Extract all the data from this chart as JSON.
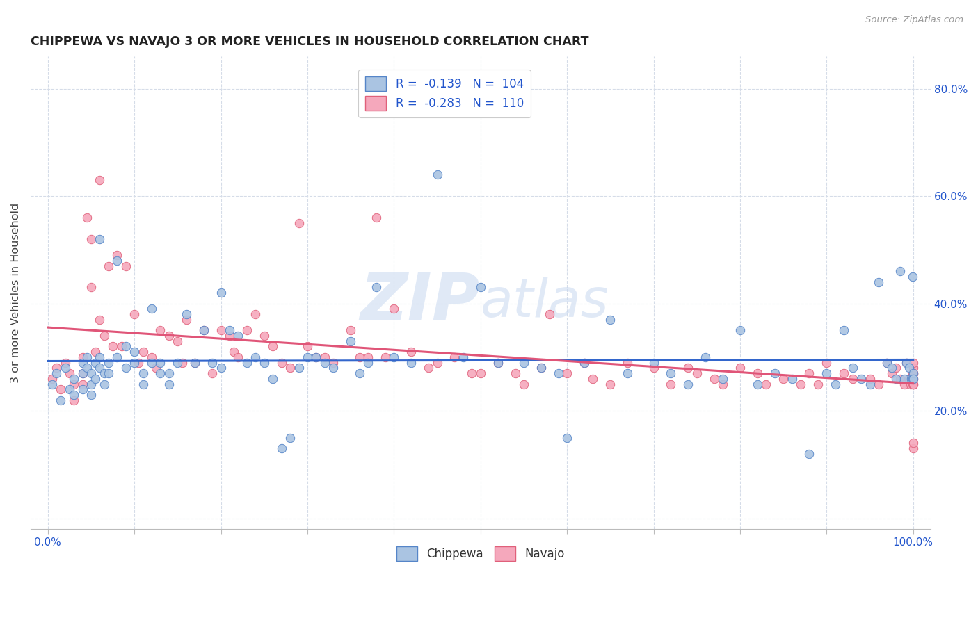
{
  "title": "CHIPPEWA VS NAVAJO 3 OR MORE VEHICLES IN HOUSEHOLD CORRELATION CHART",
  "source": "Source: ZipAtlas.com",
  "ylabel": "3 or more Vehicles in Household",
  "xlim": [
    -0.02,
    1.02
  ],
  "ylim": [
    -0.02,
    0.86
  ],
  "xticks": [
    0.0,
    0.1,
    0.2,
    0.3,
    0.4,
    0.5,
    0.6,
    0.7,
    0.8,
    0.9,
    1.0
  ],
  "yticks": [
    0.0,
    0.2,
    0.4,
    0.6,
    0.8
  ],
  "chippewa_color": "#aac4e2",
  "navajo_color": "#f5a8bc",
  "chippewa_edge_color": "#5585c8",
  "navajo_edge_color": "#e0607a",
  "chippewa_line_color": "#3366cc",
  "navajo_line_color": "#e05578",
  "legend_text_1": "R =  -0.139   N =  104",
  "legend_text_2": "R =  -0.283   N =  110",
  "legend_color": "#2255cc",
  "watermark": "ZIPatlas",
  "background_color": "#ffffff",
  "grid_color": "#d5dce8",
  "bottom_legend": [
    "Chippewa",
    "Navajo"
  ],
  "chippewa_x": [
    0.005,
    0.01,
    0.015,
    0.02,
    0.025,
    0.03,
    0.03,
    0.04,
    0.04,
    0.04,
    0.045,
    0.045,
    0.05,
    0.05,
    0.05,
    0.055,
    0.055,
    0.06,
    0.06,
    0.06,
    0.065,
    0.065,
    0.07,
    0.07,
    0.08,
    0.08,
    0.09,
    0.09,
    0.1,
    0.1,
    0.11,
    0.11,
    0.12,
    0.12,
    0.13,
    0.13,
    0.14,
    0.14,
    0.15,
    0.16,
    0.17,
    0.18,
    0.19,
    0.2,
    0.2,
    0.21,
    0.22,
    0.23,
    0.24,
    0.25,
    0.26,
    0.27,
    0.28,
    0.29,
    0.3,
    0.31,
    0.32,
    0.33,
    0.35,
    0.36,
    0.37,
    0.38,
    0.4,
    0.42,
    0.45,
    0.48,
    0.5,
    0.52,
    0.55,
    0.57,
    0.59,
    0.6,
    0.62,
    0.65,
    0.67,
    0.7,
    0.72,
    0.74,
    0.76,
    0.78,
    0.8,
    0.82,
    0.84,
    0.86,
    0.88,
    0.9,
    0.91,
    0.92,
    0.93,
    0.94,
    0.95,
    0.96,
    0.97,
    0.975,
    0.98,
    0.985,
    0.99,
    0.992,
    0.995,
    0.998,
    0.999,
    0.999,
    1.0,
    1.0
  ],
  "chippewa_y": [
    0.25,
    0.27,
    0.22,
    0.28,
    0.24,
    0.26,
    0.23,
    0.29,
    0.27,
    0.24,
    0.28,
    0.3,
    0.27,
    0.25,
    0.23,
    0.29,
    0.26,
    0.52,
    0.3,
    0.28,
    0.27,
    0.25,
    0.29,
    0.27,
    0.48,
    0.3,
    0.32,
    0.28,
    0.31,
    0.29,
    0.27,
    0.25,
    0.39,
    0.29,
    0.27,
    0.29,
    0.27,
    0.25,
    0.29,
    0.38,
    0.29,
    0.35,
    0.29,
    0.42,
    0.28,
    0.35,
    0.34,
    0.29,
    0.3,
    0.29,
    0.26,
    0.13,
    0.15,
    0.28,
    0.3,
    0.3,
    0.29,
    0.28,
    0.33,
    0.27,
    0.29,
    0.43,
    0.3,
    0.29,
    0.64,
    0.3,
    0.43,
    0.29,
    0.29,
    0.28,
    0.27,
    0.15,
    0.29,
    0.37,
    0.27,
    0.29,
    0.27,
    0.25,
    0.3,
    0.26,
    0.35,
    0.25,
    0.27,
    0.26,
    0.12,
    0.27,
    0.25,
    0.35,
    0.28,
    0.26,
    0.25,
    0.44,
    0.29,
    0.28,
    0.26,
    0.46,
    0.26,
    0.29,
    0.28,
    0.26,
    0.45,
    0.26,
    0.27,
    0.26
  ],
  "navajo_x": [
    0.005,
    0.01,
    0.015,
    0.02,
    0.025,
    0.03,
    0.03,
    0.04,
    0.04,
    0.04,
    0.045,
    0.05,
    0.05,
    0.055,
    0.06,
    0.06,
    0.065,
    0.07,
    0.075,
    0.08,
    0.085,
    0.09,
    0.1,
    0.105,
    0.11,
    0.12,
    0.125,
    0.13,
    0.14,
    0.15,
    0.155,
    0.16,
    0.17,
    0.18,
    0.19,
    0.2,
    0.21,
    0.215,
    0.22,
    0.23,
    0.24,
    0.25,
    0.26,
    0.27,
    0.28,
    0.29,
    0.3,
    0.31,
    0.32,
    0.33,
    0.35,
    0.36,
    0.37,
    0.38,
    0.39,
    0.4,
    0.42,
    0.44,
    0.45,
    0.47,
    0.49,
    0.5,
    0.52,
    0.54,
    0.55,
    0.57,
    0.58,
    0.6,
    0.62,
    0.63,
    0.65,
    0.67,
    0.7,
    0.72,
    0.74,
    0.75,
    0.77,
    0.78,
    0.8,
    0.82,
    0.83,
    0.85,
    0.87,
    0.88,
    0.89,
    0.9,
    0.92,
    0.93,
    0.95,
    0.96,
    0.97,
    0.975,
    0.98,
    0.985,
    0.99,
    0.992,
    0.995,
    0.997,
    0.998,
    0.999,
    0.999,
    1.0,
    1.0,
    1.0,
    1.0,
    1.0,
    1.0,
    1.0,
    1.0,
    1.0
  ],
  "navajo_y": [
    0.26,
    0.28,
    0.24,
    0.29,
    0.27,
    0.25,
    0.22,
    0.3,
    0.27,
    0.25,
    0.56,
    0.52,
    0.43,
    0.31,
    0.63,
    0.37,
    0.34,
    0.47,
    0.32,
    0.49,
    0.32,
    0.47,
    0.38,
    0.29,
    0.31,
    0.3,
    0.28,
    0.35,
    0.34,
    0.33,
    0.29,
    0.37,
    0.29,
    0.35,
    0.27,
    0.35,
    0.34,
    0.31,
    0.3,
    0.35,
    0.38,
    0.34,
    0.32,
    0.29,
    0.28,
    0.55,
    0.32,
    0.3,
    0.3,
    0.29,
    0.35,
    0.3,
    0.3,
    0.56,
    0.3,
    0.39,
    0.31,
    0.28,
    0.29,
    0.3,
    0.27,
    0.27,
    0.29,
    0.27,
    0.25,
    0.28,
    0.38,
    0.27,
    0.29,
    0.26,
    0.25,
    0.29,
    0.28,
    0.25,
    0.28,
    0.27,
    0.26,
    0.25,
    0.28,
    0.27,
    0.25,
    0.26,
    0.25,
    0.27,
    0.25,
    0.29,
    0.27,
    0.26,
    0.26,
    0.25,
    0.29,
    0.27,
    0.28,
    0.26,
    0.25,
    0.29,
    0.26,
    0.25,
    0.26,
    0.27,
    0.25,
    0.28,
    0.29,
    0.27,
    0.25,
    0.26,
    0.25,
    0.27,
    0.13,
    0.14
  ]
}
